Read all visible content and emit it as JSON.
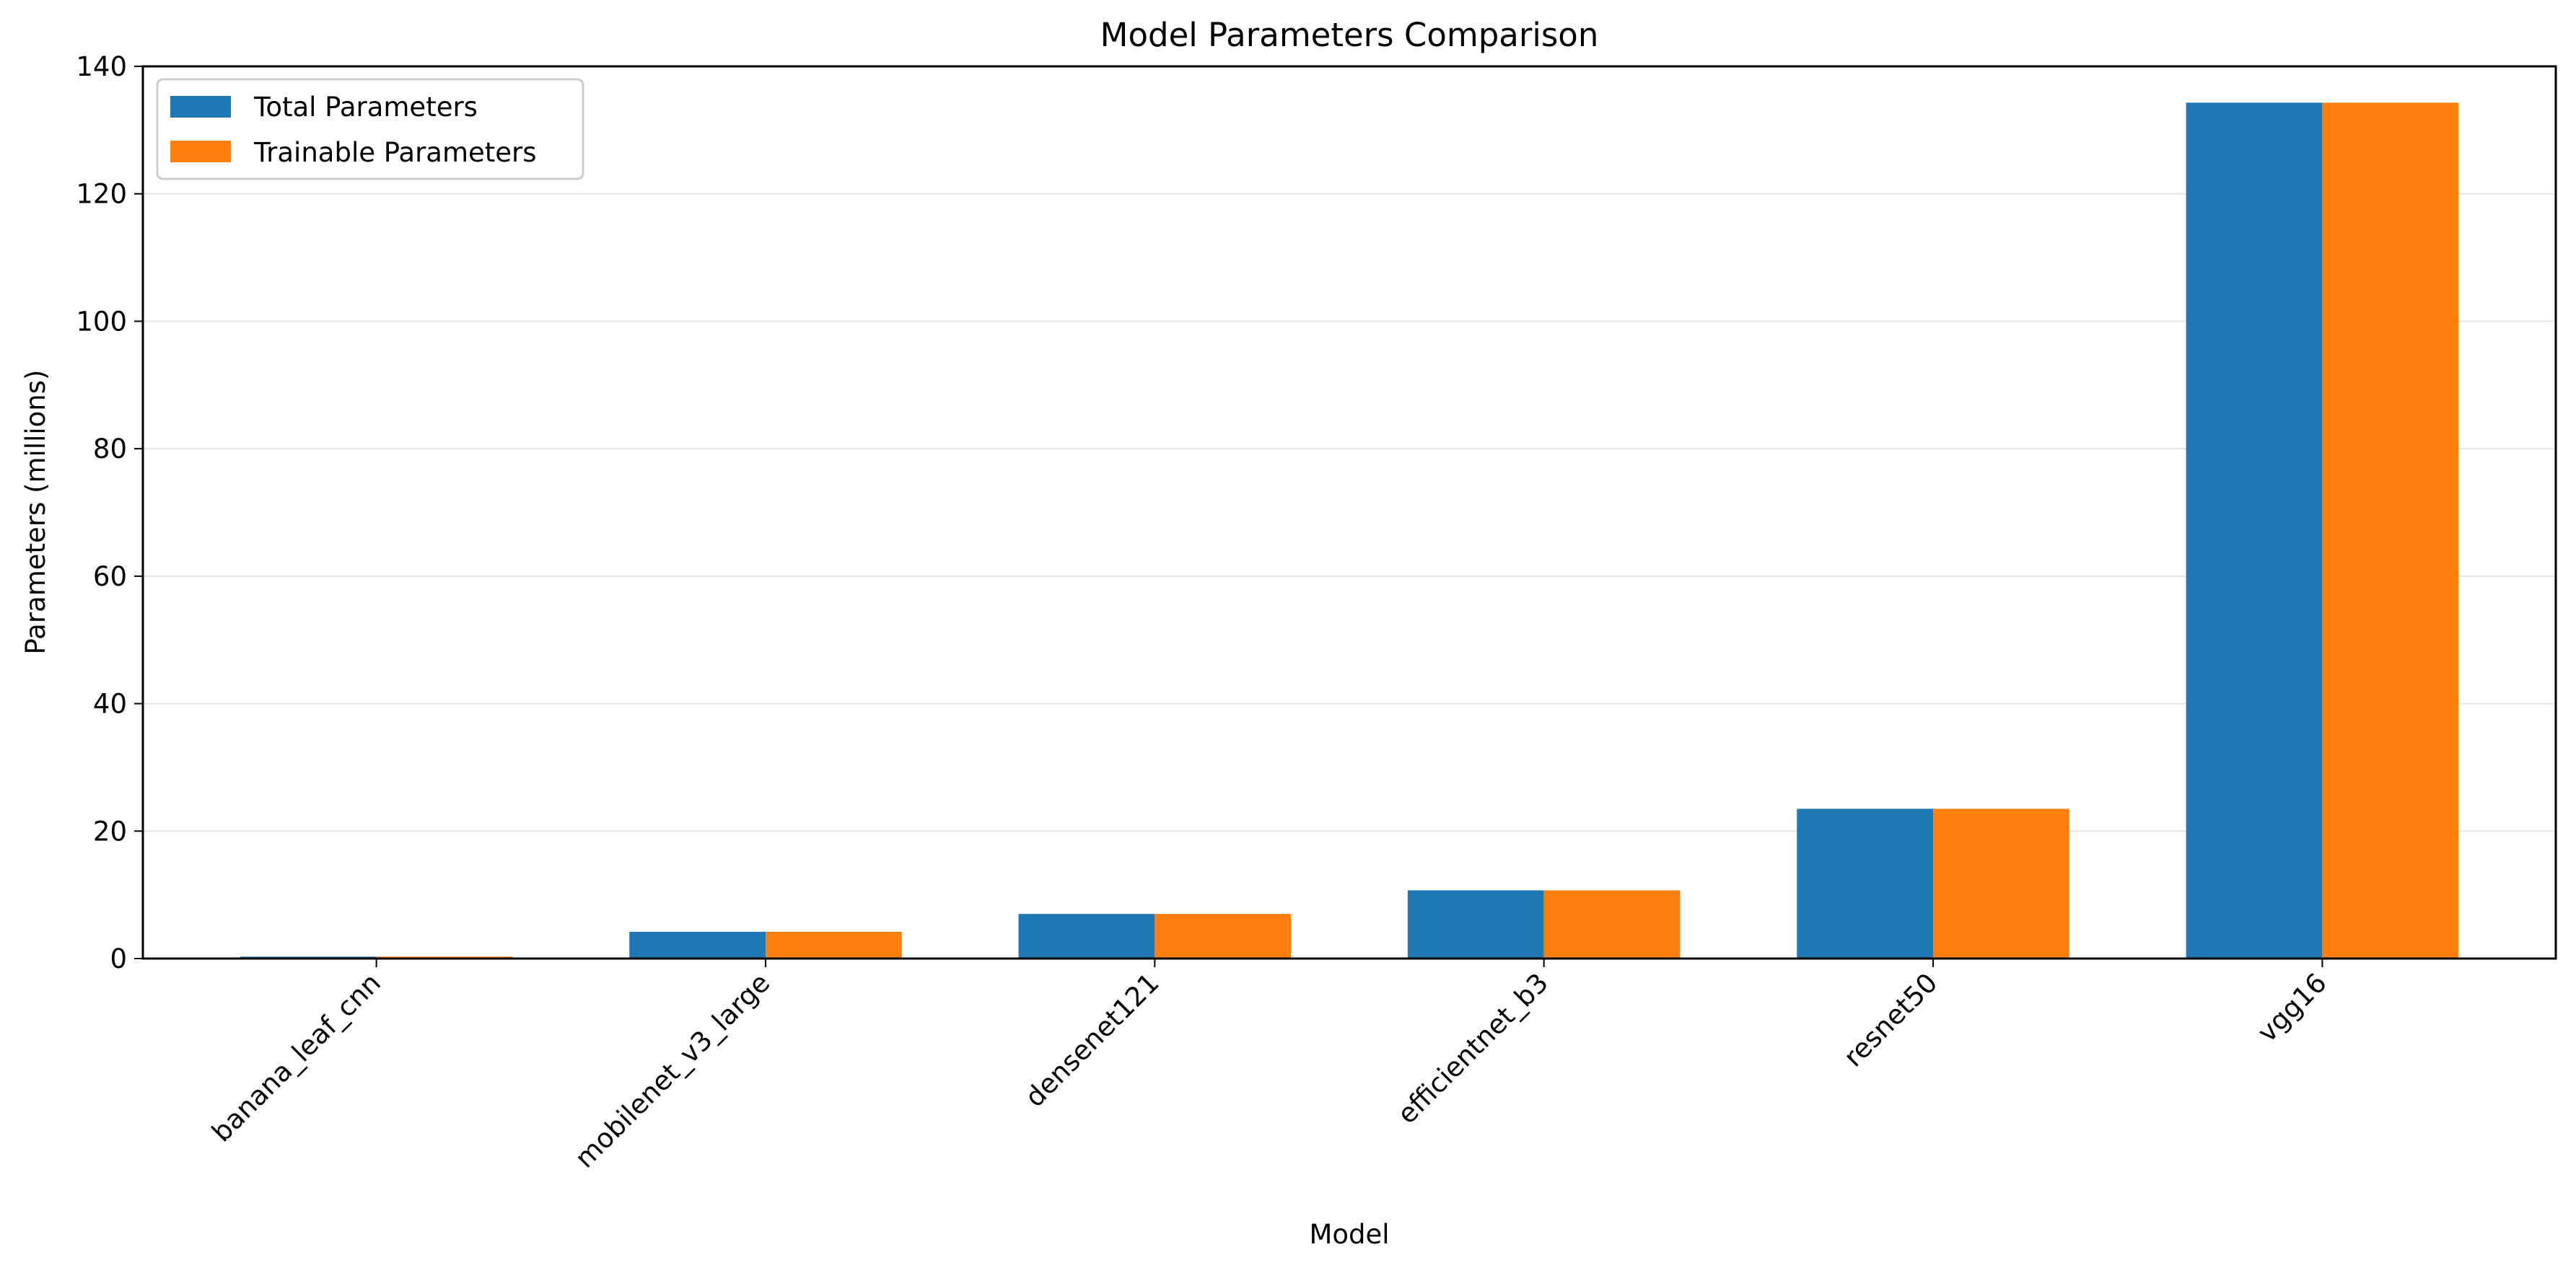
{
  "chart_data": {
    "type": "bar",
    "title": "Model Parameters Comparison",
    "xlabel": "Model",
    "ylabel": "Parameters (millions)",
    "categories": [
      "banana_leaf_cnn",
      "mobilenet_v3_large",
      "densenet121",
      "efficientnet_b3",
      "resnet50",
      "vgg16"
    ],
    "series": [
      {
        "name": "Total Parameters",
        "values": [
          0.3,
          4.2,
          7.0,
          10.7,
          23.5,
          134.3
        ],
        "color": "#1f77b4"
      },
      {
        "name": "Trainable Parameters",
        "values": [
          0.3,
          4.2,
          7.0,
          10.7,
          23.5,
          134.3
        ],
        "color": "#ff7f0e"
      }
    ],
    "ylim": [
      0,
      140
    ],
    "yticks": [
      0,
      20,
      40,
      60,
      80,
      100,
      120,
      140
    ],
    "grid": "y",
    "legend_position": "top-left"
  }
}
